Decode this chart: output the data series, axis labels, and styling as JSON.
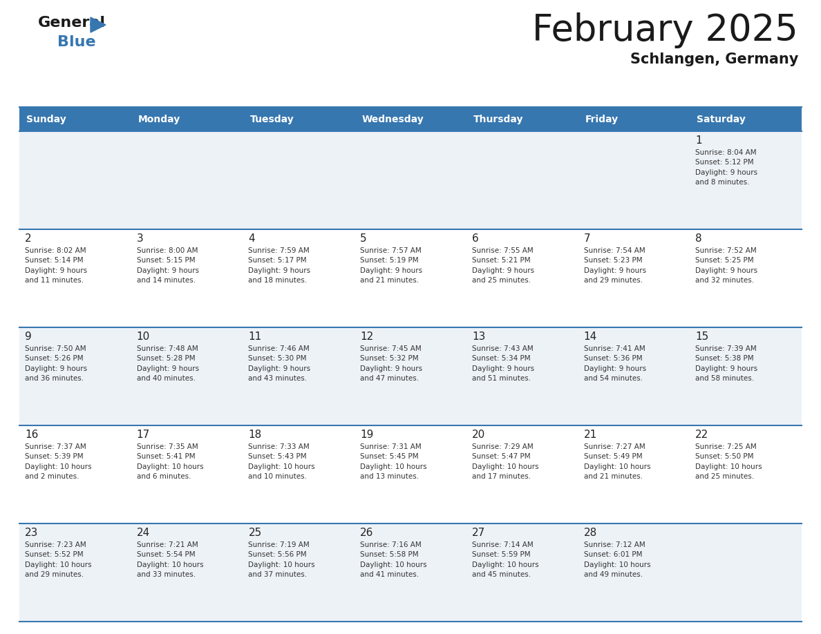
{
  "title": "February 2025",
  "subtitle": "Schlangen, Germany",
  "header_color": "#3777b0",
  "header_text_color": "#ffffff",
  "cell_bg_white": "#ffffff",
  "cell_bg_gray": "#edf2f7",
  "border_color": "#3777b0",
  "day_number_color": "#222222",
  "cell_text_color": "#333333",
  "weekdays": [
    "Sunday",
    "Monday",
    "Tuesday",
    "Wednesday",
    "Thursday",
    "Friday",
    "Saturday"
  ],
  "calendar_data": [
    [
      {
        "day": null,
        "info": null
      },
      {
        "day": null,
        "info": null
      },
      {
        "day": null,
        "info": null
      },
      {
        "day": null,
        "info": null
      },
      {
        "day": null,
        "info": null
      },
      {
        "day": null,
        "info": null
      },
      {
        "day": "1",
        "info": "Sunrise: 8:04 AM\nSunset: 5:12 PM\nDaylight: 9 hours\nand 8 minutes."
      }
    ],
    [
      {
        "day": "2",
        "info": "Sunrise: 8:02 AM\nSunset: 5:14 PM\nDaylight: 9 hours\nand 11 minutes."
      },
      {
        "day": "3",
        "info": "Sunrise: 8:00 AM\nSunset: 5:15 PM\nDaylight: 9 hours\nand 14 minutes."
      },
      {
        "day": "4",
        "info": "Sunrise: 7:59 AM\nSunset: 5:17 PM\nDaylight: 9 hours\nand 18 minutes."
      },
      {
        "day": "5",
        "info": "Sunrise: 7:57 AM\nSunset: 5:19 PM\nDaylight: 9 hours\nand 21 minutes."
      },
      {
        "day": "6",
        "info": "Sunrise: 7:55 AM\nSunset: 5:21 PM\nDaylight: 9 hours\nand 25 minutes."
      },
      {
        "day": "7",
        "info": "Sunrise: 7:54 AM\nSunset: 5:23 PM\nDaylight: 9 hours\nand 29 minutes."
      },
      {
        "day": "8",
        "info": "Sunrise: 7:52 AM\nSunset: 5:25 PM\nDaylight: 9 hours\nand 32 minutes."
      }
    ],
    [
      {
        "day": "9",
        "info": "Sunrise: 7:50 AM\nSunset: 5:26 PM\nDaylight: 9 hours\nand 36 minutes."
      },
      {
        "day": "10",
        "info": "Sunrise: 7:48 AM\nSunset: 5:28 PM\nDaylight: 9 hours\nand 40 minutes."
      },
      {
        "day": "11",
        "info": "Sunrise: 7:46 AM\nSunset: 5:30 PM\nDaylight: 9 hours\nand 43 minutes."
      },
      {
        "day": "12",
        "info": "Sunrise: 7:45 AM\nSunset: 5:32 PM\nDaylight: 9 hours\nand 47 minutes."
      },
      {
        "day": "13",
        "info": "Sunrise: 7:43 AM\nSunset: 5:34 PM\nDaylight: 9 hours\nand 51 minutes."
      },
      {
        "day": "14",
        "info": "Sunrise: 7:41 AM\nSunset: 5:36 PM\nDaylight: 9 hours\nand 54 minutes."
      },
      {
        "day": "15",
        "info": "Sunrise: 7:39 AM\nSunset: 5:38 PM\nDaylight: 9 hours\nand 58 minutes."
      }
    ],
    [
      {
        "day": "16",
        "info": "Sunrise: 7:37 AM\nSunset: 5:39 PM\nDaylight: 10 hours\nand 2 minutes."
      },
      {
        "day": "17",
        "info": "Sunrise: 7:35 AM\nSunset: 5:41 PM\nDaylight: 10 hours\nand 6 minutes."
      },
      {
        "day": "18",
        "info": "Sunrise: 7:33 AM\nSunset: 5:43 PM\nDaylight: 10 hours\nand 10 minutes."
      },
      {
        "day": "19",
        "info": "Sunrise: 7:31 AM\nSunset: 5:45 PM\nDaylight: 10 hours\nand 13 minutes."
      },
      {
        "day": "20",
        "info": "Sunrise: 7:29 AM\nSunset: 5:47 PM\nDaylight: 10 hours\nand 17 minutes."
      },
      {
        "day": "21",
        "info": "Sunrise: 7:27 AM\nSunset: 5:49 PM\nDaylight: 10 hours\nand 21 minutes."
      },
      {
        "day": "22",
        "info": "Sunrise: 7:25 AM\nSunset: 5:50 PM\nDaylight: 10 hours\nand 25 minutes."
      }
    ],
    [
      {
        "day": "23",
        "info": "Sunrise: 7:23 AM\nSunset: 5:52 PM\nDaylight: 10 hours\nand 29 minutes."
      },
      {
        "day": "24",
        "info": "Sunrise: 7:21 AM\nSunset: 5:54 PM\nDaylight: 10 hours\nand 33 minutes."
      },
      {
        "day": "25",
        "info": "Sunrise: 7:19 AM\nSunset: 5:56 PM\nDaylight: 10 hours\nand 37 minutes."
      },
      {
        "day": "26",
        "info": "Sunrise: 7:16 AM\nSunset: 5:58 PM\nDaylight: 10 hours\nand 41 minutes."
      },
      {
        "day": "27",
        "info": "Sunrise: 7:14 AM\nSunset: 5:59 PM\nDaylight: 10 hours\nand 45 minutes."
      },
      {
        "day": "28",
        "info": "Sunrise: 7:12 AM\nSunset: 6:01 PM\nDaylight: 10 hours\nand 49 minutes."
      },
      {
        "day": null,
        "info": null
      }
    ]
  ],
  "logo_general_color": "#1a1a1a",
  "logo_blue_color": "#3777b0",
  "logo_triangle_color": "#3777b0",
  "title_color": "#1a1a1a",
  "subtitle_color": "#1a1a1a"
}
